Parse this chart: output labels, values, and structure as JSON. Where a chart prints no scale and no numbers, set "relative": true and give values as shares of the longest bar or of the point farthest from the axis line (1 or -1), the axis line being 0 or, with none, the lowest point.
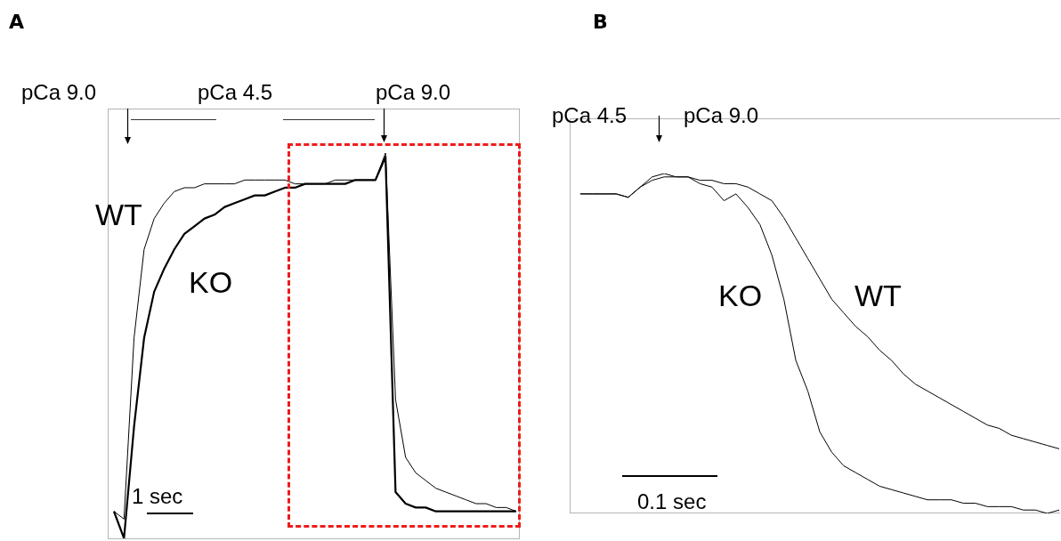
{
  "chart_data": [
    {
      "type": "line",
      "title": "A",
      "relative": true,
      "categories": [
        null,
        null,
        null,
        null,
        null,
        null,
        null,
        null,
        null,
        null,
        null,
        null,
        null,
        null,
        null,
        null,
        null,
        null,
        null,
        null,
        null,
        null,
        null,
        null,
        null,
        null,
        null,
        null,
        null,
        null,
        null,
        null,
        null,
        null,
        null,
        null,
        null,
        null,
        null,
        null,
        null
      ],
      "series": [
        {
          "name": "WT",
          "color": "#000000",
          "values": [
            0.07,
            0.05,
            0.52,
            0.75,
            0.83,
            0.87,
            0.9,
            0.91,
            0.91,
            0.92,
            0.92,
            0.92,
            0.92,
            0.93,
            0.93,
            0.93,
            0.93,
            0.93,
            0.92,
            0.92,
            0.92,
            0.92,
            0.93,
            0.93,
            0.93,
            0.93,
            0.93,
            1,
            0.36,
            0.21,
            0.17,
            0.15,
            0.13,
            0.12,
            0.11,
            0.1,
            0.09,
            0.09,
            0.08,
            0.08,
            0.07
          ]
        },
        {
          "name": "KO",
          "color": "#000000",
          "values": [
            0.07,
            0,
            0.29,
            0.52,
            0.64,
            0.7,
            0.75,
            0.79,
            0.81,
            0.83,
            0.84,
            0.86,
            0.87,
            0.88,
            0.89,
            0.89,
            0.9,
            0.91,
            0.91,
            0.92,
            0.92,
            0.92,
            0.92,
            0.92,
            0.93,
            0.93,
            0.93,
            0.99,
            0.12,
            0.09,
            0.08,
            0.08,
            0.07,
            0.07,
            0.07,
            0.07,
            0.07,
            0.07,
            0.07,
            0.07,
            0.07
          ]
        }
      ],
      "annotations": [
        "pCa 9.0",
        "pCa 4.5",
        "pCa 9.0",
        "1 sec"
      ]
    },
    {
      "type": "line",
      "title": "B",
      "relative": true,
      "categories": [
        null,
        null,
        null,
        null,
        null,
        null,
        null,
        null,
        null,
        null,
        null,
        null,
        null,
        null,
        null,
        null,
        null,
        null,
        null,
        null,
        null,
        null,
        null,
        null,
        null,
        null,
        null,
        null,
        null,
        null,
        null,
        null,
        null,
        null,
        null,
        null,
        null,
        null,
        null,
        null,
        null
      ],
      "series": [
        {
          "name": "KO",
          "color": "#000000",
          "values": [
            0.94,
            0.94,
            0.94,
            0.94,
            0.93,
            0.96,
            0.98,
            0.99,
            0.99,
            0.99,
            0.97,
            0.96,
            0.92,
            0.94,
            0.9,
            0.85,
            0.76,
            0.63,
            0.45,
            0.36,
            0.24,
            0.18,
            0.14,
            0.12,
            0.1,
            0.08,
            0.07,
            0.06,
            0.05,
            0.04,
            0.04,
            0.04,
            0.03,
            0.03,
            0.02,
            0.02,
            0.02,
            0.01,
            0.01,
            0,
            0.01
          ]
        },
        {
          "name": "WT",
          "color": "#000000",
          "values": [
            0.94,
            0.94,
            0.94,
            0.94,
            0.93,
            0.96,
            0.99,
            1,
            0.99,
            0.99,
            0.98,
            0.98,
            0.97,
            0.97,
            0.96,
            0.94,
            0.92,
            0.87,
            0.81,
            0.75,
            0.69,
            0.63,
            0.59,
            0.55,
            0.52,
            0.48,
            0.45,
            0.41,
            0.38,
            0.36,
            0.34,
            0.32,
            0.3,
            0.28,
            0.26,
            0.25,
            0.23,
            0.22,
            0.21,
            0.2,
            0.19
          ]
        }
      ],
      "annotations": [
        "pCa 4.5",
        "pCa 9.0",
        "0.1 sec"
      ]
    }
  ]
}
